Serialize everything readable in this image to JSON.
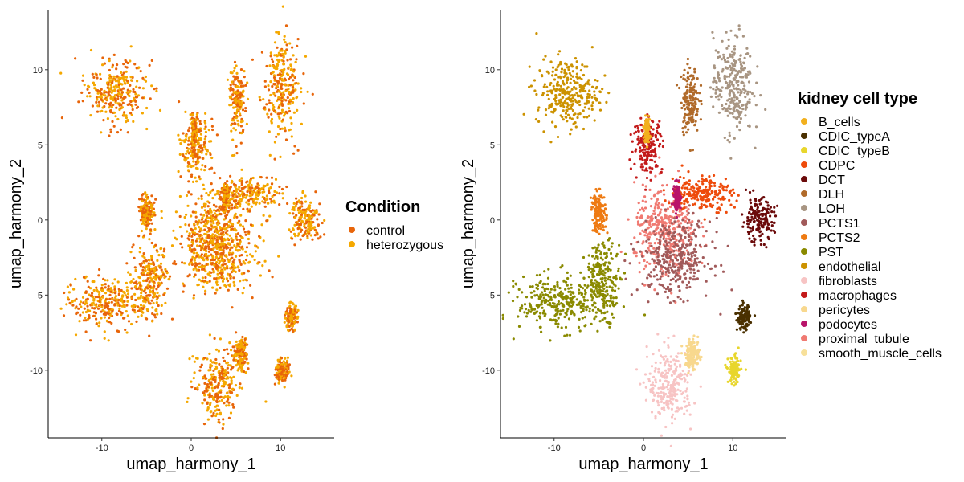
{
  "chart_data": [
    {
      "type": "scatter",
      "title": "",
      "xlabel": "umap_harmony_1",
      "ylabel": "umap_harmony_2",
      "xlim": [
        -16,
        16
      ],
      "ylim": [
        -14.5,
        14
      ],
      "xticks": [
        -10,
        0,
        10
      ],
      "yticks": [
        10,
        5,
        0,
        -5,
        -10
      ],
      "grid": false,
      "legend": {
        "title": "Condition",
        "placement": "right",
        "entries": [
          {
            "label": "control",
            "color": "#E8650A"
          },
          {
            "label": "heterozygous",
            "color": "#F5A800"
          }
        ]
      },
      "series": [
        {
          "name": "control",
          "color": "#E8650A"
        },
        {
          "name": "heterozygous",
          "color": "#F5A800"
        }
      ]
    },
    {
      "type": "scatter",
      "title": "",
      "xlabel": "umap_harmony_1",
      "ylabel": "umap_harmony_2",
      "xlim": [
        -16,
        16
      ],
      "ylim": [
        -14.5,
        14
      ],
      "xticks": [
        -10,
        0,
        10
      ],
      "yticks": [
        10,
        5,
        0,
        -5,
        -10
      ],
      "grid": false,
      "legend": {
        "title": "kidney cell type",
        "placement": "right",
        "entries": [
          {
            "label": "B_cells",
            "color": "#F2B01E"
          },
          {
            "label": "CDIC_typeA",
            "color": "#4A3000"
          },
          {
            "label": "CDIC_typeB",
            "color": "#E8D62C"
          },
          {
            "label": "CDPC",
            "color": "#EE4B0B"
          },
          {
            "label": "DCT",
            "color": "#6B0A0A"
          },
          {
            "label": "DLH",
            "color": "#B06A2A"
          },
          {
            "label": "LOH",
            "color": "#A89582"
          },
          {
            "label": "PCTS1",
            "color": "#A15A5A"
          },
          {
            "label": "PCTS2",
            "color": "#EE7A12"
          },
          {
            "label": "PST",
            "color": "#8A8A00"
          },
          {
            "label": "endothelial",
            "color": "#CC9200"
          },
          {
            "label": "fibroblasts",
            "color": "#F7C4C4"
          },
          {
            "label": "macrophages",
            "color": "#C31A1A"
          },
          {
            "label": "pericytes",
            "color": "#F8D88E"
          },
          {
            "label": "podocytes",
            "color": "#B8146A"
          },
          {
            "label": "proximal_tubule",
            "color": "#F07A72"
          },
          {
            "label": "smooth_muscle_cells",
            "color": "#F7E09A"
          }
        ]
      },
      "clusters": [
        {
          "name": "endothelial",
          "cx": -8.5,
          "cy": 8.5,
          "rx": 3.5,
          "ry": 2.2
        },
        {
          "name": "LOH",
          "cx": 10,
          "cy": 9,
          "rx": 2.2,
          "ry": 3.3
        },
        {
          "name": "DLH",
          "cx": 5.2,
          "cy": 8,
          "rx": 1.0,
          "ry": 2.2
        },
        {
          "name": "proximal_tubule",
          "cx": 2.5,
          "cy": -0.8,
          "rx": 3.5,
          "ry": 3.0
        },
        {
          "name": "PCTS1",
          "cx": 3.5,
          "cy": -2.5,
          "rx": 4.0,
          "ry": 2.5
        },
        {
          "name": "PST",
          "cx": -9.5,
          "cy": -5.5,
          "rx": 4.5,
          "ry": 1.8
        },
        {
          "name": "PST",
          "cx": -4.5,
          "cy": -4.0,
          "rx": 2.0,
          "ry": 2.5
        },
        {
          "name": "CDPC",
          "cx": 6.5,
          "cy": 1.8,
          "rx": 3.5,
          "ry": 1.2
        },
        {
          "name": "DCT",
          "cx": 12.8,
          "cy": 0,
          "rx": 1.8,
          "ry": 1.4
        },
        {
          "name": "macrophages",
          "cx": 0.5,
          "cy": 5,
          "rx": 1.6,
          "ry": 1.8
        },
        {
          "name": "fibroblasts",
          "cx": 3.0,
          "cy": -11.0,
          "rx": 2.5,
          "ry": 2.4
        },
        {
          "name": "CDIC_typeA",
          "cx": 11.2,
          "cy": -6.5,
          "rx": 0.7,
          "ry": 0.8
        },
        {
          "name": "CDIC_typeB",
          "cx": 10.2,
          "cy": -10.0,
          "rx": 0.7,
          "ry": 0.9
        },
        {
          "name": "PCTS2",
          "cx": -5.0,
          "cy": 0.5,
          "rx": 0.8,
          "ry": 1.3
        },
        {
          "name": "pericytes",
          "cx": 5.5,
          "cy": -9.0,
          "rx": 0.8,
          "ry": 1.0
        },
        {
          "name": "podocytes",
          "cx": 3.8,
          "cy": 1.5,
          "rx": 0.4,
          "ry": 0.9
        },
        {
          "name": "B_cells",
          "cx": 0.4,
          "cy": 6.0,
          "rx": 0.3,
          "ry": 0.8
        }
      ]
    }
  ]
}
